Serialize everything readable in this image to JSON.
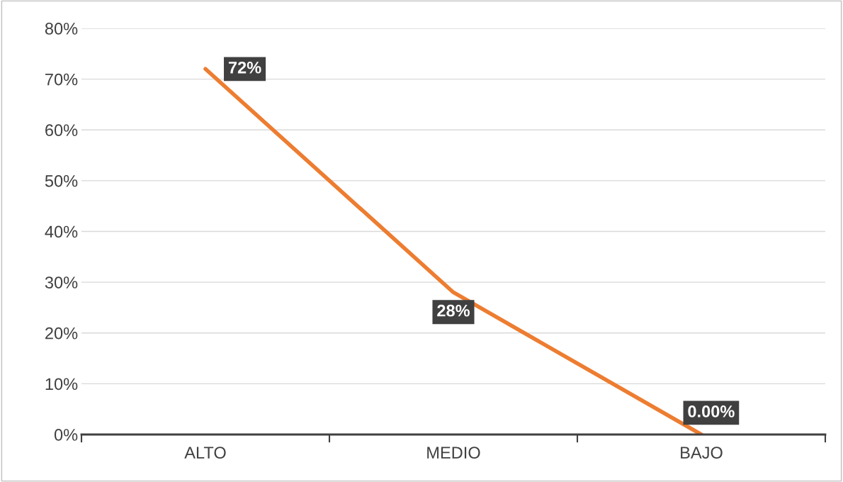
{
  "chart_data": {
    "type": "line",
    "categories": [
      "ALTO",
      "MEDIO",
      "BAJO"
    ],
    "series": [
      {
        "color": "#ed7d31",
        "values": [
          72,
          28,
          0
        ],
        "value_labels": [
          "72%",
          "28%",
          "0.00%"
        ]
      }
    ],
    "ylim": [
      0,
      80
    ],
    "yticks": [
      {
        "value": 0,
        "label": "0%"
      },
      {
        "value": 10,
        "label": "10%"
      },
      {
        "value": 20,
        "label": "20%"
      },
      {
        "value": 30,
        "label": "30%"
      },
      {
        "value": 40,
        "label": "40%"
      },
      {
        "value": 50,
        "label": "50%"
      },
      {
        "value": 60,
        "label": "60%"
      },
      {
        "value": 70,
        "label": "70%"
      },
      {
        "value": 80,
        "label": "80%"
      }
    ],
    "grid": "y",
    "marker": "none",
    "line_style": "solid"
  }
}
